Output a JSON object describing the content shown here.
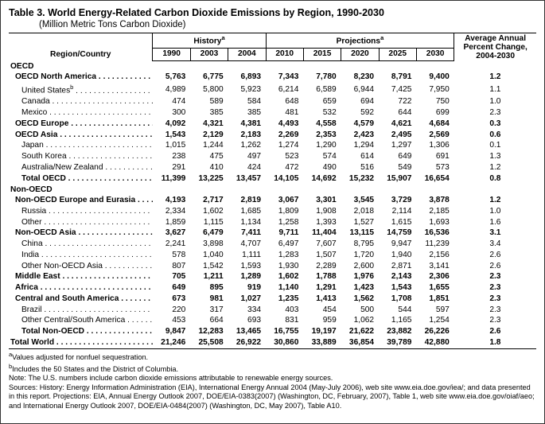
{
  "title": "Table 3.  World Energy-Related Carbon Dioxide Emissions by Region, 1990-2030",
  "subtitle": "(Million Metric Tons Carbon Dioxide)",
  "header": {
    "region": "Region/Country",
    "history": "History",
    "projections": "Projections",
    "avg": "Average Annual Percent Change, 2004-2030",
    "years": {
      "y1990": "1990",
      "y2003": "2003",
      "y2004": "2004",
      "y2010": "2010",
      "y2015": "2015",
      "y2020": "2020",
      "y2025": "2025",
      "y2030": "2030"
    },
    "sup_a": "a"
  },
  "sections": {
    "oecd": "OECD",
    "nonoecd": "Non-OECD"
  },
  "rows": {
    "oecd_na": {
      "label": "OECD North America",
      "y1990": "5,763",
      "y2003": "6,775",
      "y2004": "6,893",
      "y2010": "7,343",
      "y2015": "7,780",
      "y2020": "8,230",
      "y2025": "8,791",
      "y2030": "9,400",
      "pct": "1.2",
      "bold": true,
      "indent": 1
    },
    "us": {
      "label": "United States",
      "sup": "b",
      "y1990": "4,989",
      "y2003": "5,800",
      "y2004": "5,923",
      "y2010": "6,214",
      "y2015": "6,589",
      "y2020": "6,944",
      "y2025": "7,425",
      "y2030": "7,950",
      "pct": "1.1",
      "indent": 2
    },
    "canada": {
      "label": "Canada",
      "y1990": "474",
      "y2003": "589",
      "y2004": "584",
      "y2010": "648",
      "y2015": "659",
      "y2020": "694",
      "y2025": "722",
      "y2030": "750",
      "pct": "1.0",
      "indent": 2
    },
    "mexico": {
      "label": "Mexico",
      "y1990": "300",
      "y2003": "385",
      "y2004": "385",
      "y2010": "481",
      "y2015": "532",
      "y2020": "592",
      "y2025": "644",
      "y2030": "699",
      "pct": "2.3",
      "indent": 2
    },
    "oecd_eu": {
      "label": "OECD Europe",
      "y1990": "4,092",
      "y2003": "4,321",
      "y2004": "4,381",
      "y2010": "4,493",
      "y2015": "4,558",
      "y2020": "4,579",
      "y2025": "4,621",
      "y2030": "4,684",
      "pct": "0.3",
      "bold": true,
      "indent": 1
    },
    "oecd_asia": {
      "label": "OECD Asia",
      "y1990": "1,543",
      "y2003": "2,129",
      "y2004": "2,183",
      "y2010": "2,269",
      "y2015": "2,353",
      "y2020": "2,423",
      "y2025": "2,495",
      "y2030": "2,569",
      "pct": "0.6",
      "bold": true,
      "indent": 1
    },
    "japan": {
      "label": "Japan",
      "y1990": "1,015",
      "y2003": "1,244",
      "y2004": "1,262",
      "y2010": "1,274",
      "y2015": "1,290",
      "y2020": "1,294",
      "y2025": "1,297",
      "y2030": "1,306",
      "pct": "0.1",
      "indent": 2
    },
    "skorea": {
      "label": "South Korea",
      "y1990": "238",
      "y2003": "475",
      "y2004": "497",
      "y2010": "523",
      "y2015": "574",
      "y2020": "614",
      "y2025": "649",
      "y2030": "691",
      "pct": "1.3",
      "indent": 2
    },
    "ausnz": {
      "label": "Australia/New Zealand",
      "y1990": "291",
      "y2003": "410",
      "y2004": "424",
      "y2010": "472",
      "y2015": "490",
      "y2020": "516",
      "y2025": "549",
      "y2030": "573",
      "pct": "1.2",
      "indent": 2
    },
    "tot_oecd": {
      "label": "Total OECD",
      "y1990": "11,399",
      "y2003": "13,225",
      "y2004": "13,457",
      "y2010": "14,105",
      "y2015": "14,692",
      "y2020": "15,232",
      "y2025": "15,907",
      "y2030": "16,654",
      "pct": "0.8",
      "bold": true,
      "indent": 2
    },
    "noe_eu": {
      "label": "Non-OECD Europe and Eurasia",
      "y1990": "4,193",
      "y2003": "2,717",
      "y2004": "2,819",
      "y2010": "3,067",
      "y2015": "3,301",
      "y2020": "3,545",
      "y2025": "3,729",
      "y2030": "3,878",
      "pct": "1.2",
      "bold": true,
      "indent": 1
    },
    "russia": {
      "label": "Russia",
      "y1990": "2,334",
      "y2003": "1,602",
      "y2004": "1,685",
      "y2010": "1,809",
      "y2015": "1,908",
      "y2020": "2,018",
      "y2025": "2,114",
      "y2030": "2,185",
      "pct": "1.0",
      "indent": 2
    },
    "other_eu": {
      "label": "Other",
      "y1990": "1,859",
      "y2003": "1,115",
      "y2004": "1,134",
      "y2010": "1,258",
      "y2015": "1,393",
      "y2020": "1,527",
      "y2025": "1,615",
      "y2030": "1,693",
      "pct": "1.6",
      "indent": 2
    },
    "noe_asia": {
      "label": "Non-OECD Asia",
      "y1990": "3,627",
      "y2003": "6,479",
      "y2004": "7,411",
      "y2010": "9,711",
      "y2015": "11,404",
      "y2020": "13,115",
      "y2025": "14,759",
      "y2030": "16,536",
      "pct": "3.1",
      "bold": true,
      "indent": 1
    },
    "china": {
      "label": "China",
      "y1990": "2,241",
      "y2003": "3,898",
      "y2004": "4,707",
      "y2010": "6,497",
      "y2015": "7,607",
      "y2020": "8,795",
      "y2025": "9,947",
      "y2030": "11,239",
      "pct": "3.4",
      "indent": 2
    },
    "india": {
      "label": "India",
      "y1990": "578",
      "y2003": "1,040",
      "y2004": "1,111",
      "y2010": "1,283",
      "y2015": "1,507",
      "y2020": "1,720",
      "y2025": "1,940",
      "y2030": "2,156",
      "pct": "2.6",
      "indent": 2
    },
    "other_asia": {
      "label": "Other Non-OECD Asia",
      "y1990": "807",
      "y2003": "1,542",
      "y2004": "1,593",
      "y2010": "1,930",
      "y2015": "2,289",
      "y2020": "2,600",
      "y2025": "2,871",
      "y2030": "3,141",
      "pct": "2.6",
      "indent": 2
    },
    "mideast": {
      "label": "Middle East",
      "y1990": "705",
      "y2003": "1,211",
      "y2004": "1,289",
      "y2010": "1,602",
      "y2015": "1,788",
      "y2020": "1,976",
      "y2025": "2,143",
      "y2030": "2,306",
      "pct": "2.3",
      "bold": true,
      "indent": 1
    },
    "africa": {
      "label": "Africa",
      "y1990": "649",
      "y2003": "895",
      "y2004": "919",
      "y2010": "1,140",
      "y2015": "1,291",
      "y2020": "1,423",
      "y2025": "1,543",
      "y2030": "1,655",
      "pct": "2.3",
      "bold": true,
      "indent": 1
    },
    "csamer": {
      "label": "Central and South America",
      "y1990": "673",
      "y2003": "981",
      "y2004": "1,027",
      "y2010": "1,235",
      "y2015": "1,413",
      "y2020": "1,562",
      "y2025": "1,708",
      "y2030": "1,851",
      "pct": "2.3",
      "bold": true,
      "indent": 1
    },
    "brazil": {
      "label": "Brazil",
      "y1990": "220",
      "y2003": "317",
      "y2004": "334",
      "y2010": "403",
      "y2015": "454",
      "y2020": "500",
      "y2025": "544",
      "y2030": "597",
      "pct": "2.3",
      "indent": 2
    },
    "other_cs": {
      "label": "Other Central/South America",
      "y1990": "453",
      "y2003": "664",
      "y2004": "693",
      "y2010": "831",
      "y2015": "959",
      "y2020": "1,062",
      "y2025": "1,165",
      "y2030": "1,254",
      "pct": "2.3",
      "indent": 2
    },
    "tot_noecd": {
      "label": "Total Non-OECD",
      "y1990": "9,847",
      "y2003": "12,283",
      "y2004": "13,465",
      "y2010": "16,755",
      "y2015": "19,197",
      "y2020": "21,622",
      "y2025": "23,882",
      "y2030": "26,226",
      "pct": "2.6",
      "bold": true,
      "indent": 2
    },
    "world": {
      "label": "Total World",
      "y1990": "21,246",
      "y2003": "25,508",
      "y2004": "26,922",
      "y2010": "30,860",
      "y2015": "33,889",
      "y2020": "36,854",
      "y2025": "39,789",
      "y2030": "42,880",
      "pct": "1.8",
      "bold": true,
      "indent": 0
    }
  },
  "footnotes": {
    "a": "Values adjusted for nonfuel sequestration.",
    "b": "Includes the 50 States and the District of Columbia.",
    "note": "Note: The U.S. numbers include carbon dioxide emissions attributable to renewable energy sources.",
    "sources": "Sources: History: Energy Information Administration (EIA), International Energy Annual 2004 (May-July 2006), web site www.eia.doe.gov/iea/; and data presented in this report. Projections: EIA, Annual Energy Outlook 2007, DOE/EIA-0383(2007) (Washington, DC, February, 2007), Table 1, web site www.eia.doe.gov/oiaf/aeo; and International Energy Outlook 2007, DOE/EIA-0484(2007) (Washington, DC, May 2007), Table A10."
  }
}
